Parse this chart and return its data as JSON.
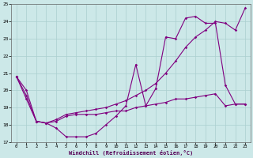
{
  "xlabel": "Windchill (Refroidissement éolien,°C)",
  "background_color": "#cce8e8",
  "grid_color": "#aacfcf",
  "line_color": "#800080",
  "xlim": [
    -0.5,
    23.5
  ],
  "ylim": [
    17,
    25
  ],
  "xticks": [
    0,
    1,
    2,
    3,
    4,
    5,
    6,
    7,
    8,
    9,
    10,
    11,
    12,
    13,
    14,
    15,
    16,
    17,
    18,
    19,
    20,
    21,
    22,
    23
  ],
  "yticks": [
    17,
    18,
    19,
    20,
    21,
    22,
    23,
    24,
    25
  ],
  "line1_x": [
    0,
    1,
    2,
    3,
    4,
    5,
    6,
    7,
    8,
    9,
    10,
    11,
    12,
    13,
    14,
    15,
    16,
    17,
    18,
    19,
    20,
    21,
    22,
    23
  ],
  "line1_y": [
    20.8,
    20.0,
    18.2,
    18.1,
    17.8,
    17.3,
    17.3,
    17.3,
    17.5,
    18.0,
    18.5,
    19.1,
    21.5,
    19.1,
    20.1,
    23.1,
    23.0,
    24.2,
    24.3,
    23.9,
    23.9,
    20.3,
    19.2,
    19.2
  ],
  "line2_x": [
    0,
    1,
    2,
    3,
    4,
    5,
    6,
    7,
    8,
    9,
    10,
    11,
    12,
    13,
    14,
    15,
    16,
    17,
    18,
    19,
    20,
    21,
    22,
    23
  ],
  "line2_y": [
    20.8,
    19.7,
    18.2,
    18.1,
    18.2,
    18.5,
    18.6,
    18.6,
    18.6,
    18.7,
    18.8,
    18.8,
    19.0,
    19.1,
    19.2,
    19.3,
    19.5,
    19.5,
    19.6,
    19.7,
    19.8,
    19.1,
    19.2,
    19.2
  ],
  "line3_x": [
    0,
    1,
    2,
    3,
    4,
    5,
    6,
    7,
    8,
    9,
    10,
    11,
    12,
    13,
    14,
    15,
    16,
    17,
    18,
    19,
    20,
    21,
    22,
    23
  ],
  "line3_y": [
    20.8,
    19.5,
    18.2,
    18.1,
    18.3,
    18.6,
    18.7,
    18.8,
    18.9,
    19.0,
    19.2,
    19.4,
    19.7,
    20.0,
    20.4,
    21.0,
    21.7,
    22.5,
    23.1,
    23.5,
    24.0,
    23.9,
    23.5,
    24.8
  ]
}
